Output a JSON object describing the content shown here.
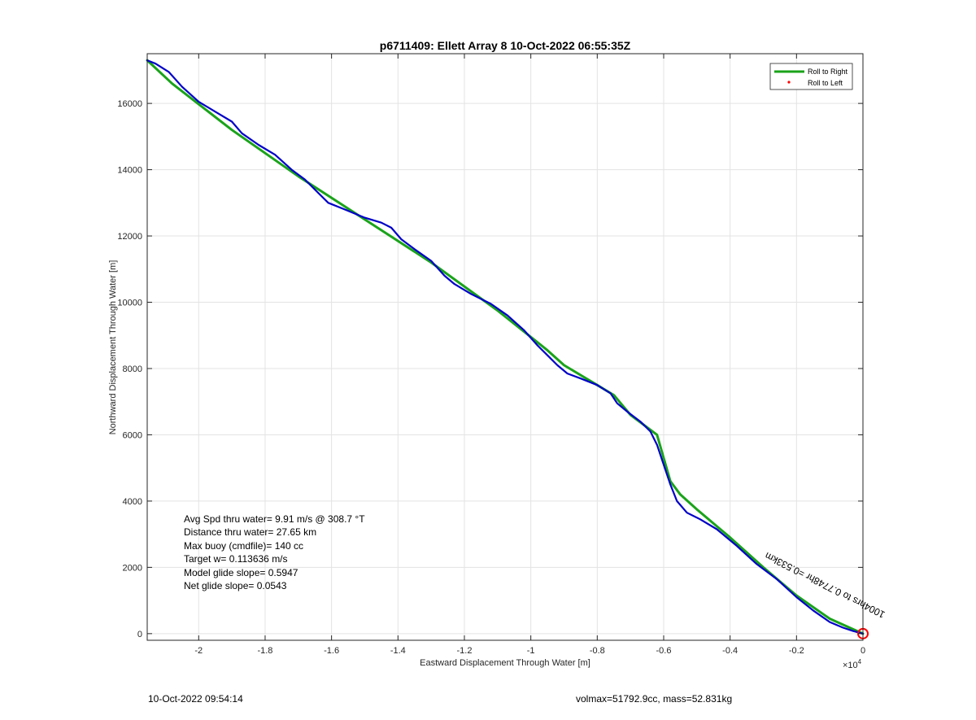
{
  "chart_data": {
    "type": "line",
    "title": "p6711409: Ellett Array 8 10-Oct-2022 06:55:35Z",
    "xlabel": "Eastward Displacement Through Water [m]",
    "ylabel": "Northward Displacement Through Water [m]",
    "x_exponent_label": "×10",
    "x_exponent_power": "4",
    "xlim": [
      -2.155,
      0
    ],
    "ylim": [
      -200,
      17500
    ],
    "x_ticks": [
      -2,
      -1.8,
      -1.6,
      -1.4,
      -1.2,
      -1,
      -0.8,
      -0.6,
      -0.4,
      -0.2,
      0
    ],
    "x_tick_labels": [
      "-2",
      "-1.8",
      "-1.6",
      "-1.4",
      "-1.2",
      "-1",
      "-0.8",
      "-0.6",
      "-0.4",
      "-0.2",
      "0"
    ],
    "y_ticks": [
      0,
      2000,
      4000,
      6000,
      8000,
      10000,
      12000,
      14000,
      16000
    ],
    "y_tick_labels": [
      "0",
      "2000",
      "4000",
      "6000",
      "8000",
      "10000",
      "12000",
      "14000",
      "16000"
    ],
    "grid": true,
    "legend_position": "top-right",
    "series": [
      {
        "name": "Roll to Right",
        "color": "#1aa31a",
        "x": [
          -2.155,
          -2.08,
          -1.9,
          -1.7,
          -1.5,
          -1.3,
          -1.1,
          -0.95,
          -0.9,
          -0.8,
          -0.75,
          -0.7,
          -0.62,
          -0.6,
          -0.58,
          -0.55,
          -0.5,
          -0.4,
          -0.3,
          -0.2,
          -0.1,
          0
        ],
        "y": [
          17300,
          16600,
          15200,
          13800,
          12500,
          11200,
          9750,
          8550,
          8100,
          7500,
          7200,
          6600,
          6000,
          5300,
          4600,
          4200,
          3750,
          2900,
          2000,
          1150,
          450,
          0
        ]
      },
      {
        "name": "",
        "color": "#0000c8",
        "x": [
          -2.155,
          -2.13,
          -2.09,
          -2.05,
          -2.0,
          -1.95,
          -1.9,
          -1.87,
          -1.82,
          -1.77,
          -1.72,
          -1.68,
          -1.64,
          -1.61,
          -1.56,
          -1.5,
          -1.45,
          -1.42,
          -1.39,
          -1.35,
          -1.3,
          -1.26,
          -1.23,
          -1.18,
          -1.12,
          -1.07,
          -1.02,
          -0.98,
          -0.95,
          -0.92,
          -0.89,
          -0.85,
          -0.8,
          -0.76,
          -0.74,
          -0.71,
          -0.67,
          -0.64,
          -0.62,
          -0.6,
          -0.58,
          -0.56,
          -0.53,
          -0.49,
          -0.44,
          -0.38,
          -0.32,
          -0.26,
          -0.2,
          -0.15,
          -0.1,
          -0.06,
          -0.03,
          0
        ],
        "y": [
          17300,
          17200,
          16950,
          16500,
          16050,
          15750,
          15450,
          15100,
          14750,
          14450,
          14000,
          13700,
          13300,
          13000,
          12800,
          12550,
          12400,
          12250,
          11900,
          11600,
          11250,
          10800,
          10550,
          10250,
          9950,
          9600,
          9150,
          8700,
          8400,
          8100,
          7850,
          7700,
          7500,
          7250,
          6950,
          6700,
          6400,
          6100,
          5700,
          5100,
          4500,
          4000,
          3650,
          3450,
          3150,
          2650,
          2100,
          1650,
          1100,
          700,
          350,
          180,
          80,
          0
        ]
      }
    ],
    "legend": [
      {
        "label": "Roll to Right",
        "color": "#1aa31a",
        "marker": "line"
      },
      {
        "label": "Roll to Left",
        "color": "#ff0000",
        "marker": "dot"
      }
    ],
    "marker": {
      "x": 0,
      "y": 0,
      "color": "#ff0000"
    },
    "annotations": [
      {
        "text": "1004hrs to 0.7748hr =0.533km",
        "x": -0.11,
        "y": 1550,
        "angle": 27
      }
    ]
  },
  "stats": {
    "line1": "Avg Spd thru water=  9.91 m/s @ 308.7 °T",
    "line2": "Distance thru water= 27.65 km",
    "line3": "Max buoy (cmdfile)= 140 cc",
    "line4": "Target w= 0.113636 m/s",
    "line5": "Model glide slope= 0.5947",
    "line6": "Net glide slope= 0.0543"
  },
  "footer": {
    "timestamp": "10-Oct-2022 09:54:14",
    "mass_info": "volmax=51792.9cc, mass=52.831kg"
  }
}
